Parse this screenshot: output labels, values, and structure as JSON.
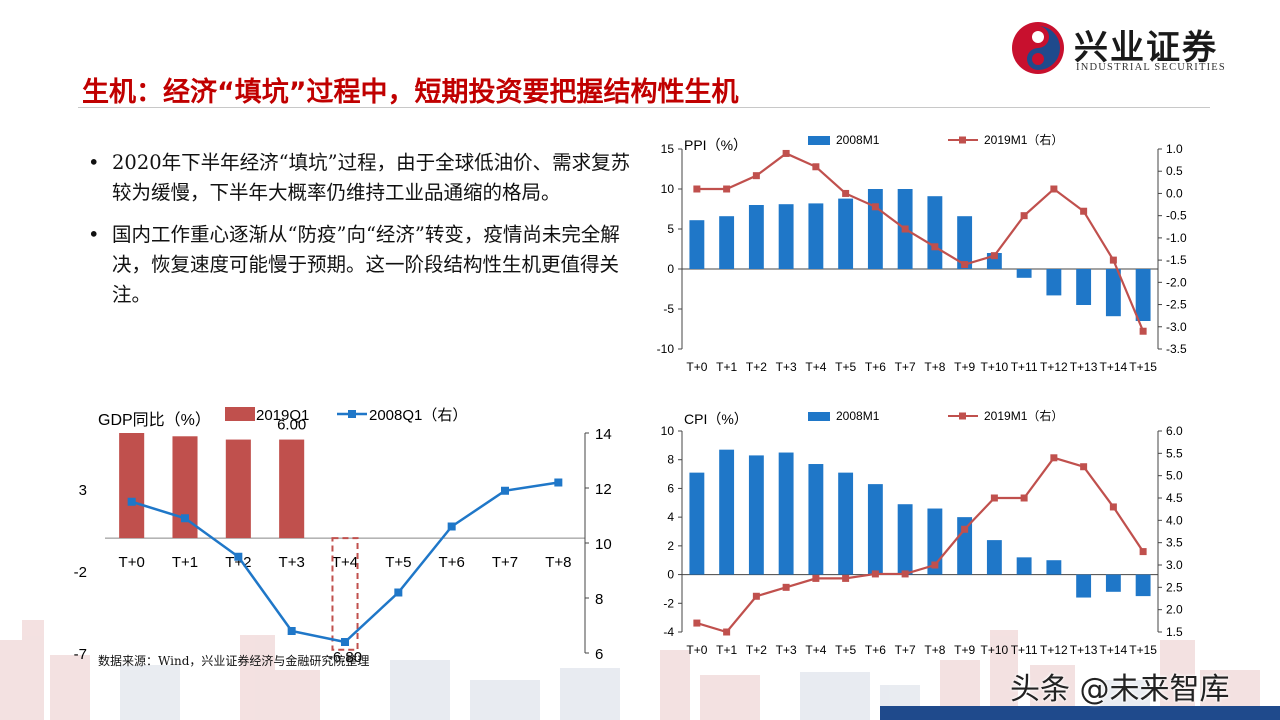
{
  "header": {
    "logo_cn": "兴业证券",
    "logo_en": "INDUSTRIAL SECURITIES",
    "title": "生机：经济“填坑”过程中，短期投资要把握结构性生机"
  },
  "bullets": [
    "2020年下半年经济“填坑”过程，由于全球低油价、需求复苏较为缓慢，下半年大概率仍维持工业品通缩的格局。",
    "国内工作重心逐渐从“防疫”向“经济”转变，疫情尚未完全解决，恢复速度可能慢于预期。这一阶段结构性生机更值得关注。"
  ],
  "source": "数据来源：Wind，兴业证券经济与金融研究院整理",
  "watermark": "头条 @未来智库",
  "colors": {
    "blue_bar": "#1f77c8",
    "red_line": "#c0504d",
    "red_bar": "#c0504d",
    "blue_line": "#1f77c8",
    "title_red": "#c00000"
  },
  "chart_data": [
    {
      "type": "bar",
      "id": "ppi",
      "title": "PPI（%）",
      "categories": [
        "T+0",
        "T+1",
        "T+2",
        "T+3",
        "T+4",
        "T+5",
        "T+6",
        "T+7",
        "T+8",
        "T+9",
        "T+10",
        "T+11",
        "T+12",
        "T+13",
        "T+14",
        "T+15"
      ],
      "series": [
        {
          "name": "2008M1",
          "kind": "bar",
          "axis": "left",
          "values": [
            6.1,
            6.6,
            8.0,
            8.1,
            8.2,
            8.8,
            10.0,
            10.0,
            9.1,
            6.6,
            2.0,
            -1.1,
            -3.3,
            -4.5,
            -5.9,
            -6.5
          ]
        },
        {
          "name": "2019M1（右）",
          "kind": "line",
          "axis": "right",
          "values": [
            0.1,
            0.1,
            0.4,
            0.9,
            0.6,
            0.0,
            -0.3,
            -0.8,
            -1.2,
            -1.6,
            -1.4,
            -0.5,
            0.1,
            -0.4,
            -1.5,
            -3.1
          ]
        }
      ],
      "ylim_left": [
        -10,
        15
      ],
      "yticks_left": [
        -10,
        -5,
        0,
        5,
        10,
        15
      ],
      "ylim_right": [
        -3.5,
        1.0
      ],
      "yticks_right": [
        "1.0",
        "0.5",
        "0.0",
        "-0.5",
        "-1.0",
        "-1.5",
        "-2.0",
        "-2.5",
        "-3.0",
        "-3.5"
      ],
      "legend": "top"
    },
    {
      "type": "bar",
      "id": "cpi",
      "title": "CPI（%）",
      "categories": [
        "T+0",
        "T+1",
        "T+2",
        "T+3",
        "T+4",
        "T+5",
        "T+6",
        "T+7",
        "T+8",
        "T+9",
        "T+10",
        "T+11",
        "T+12",
        "T+13",
        "T+14",
        "T+15"
      ],
      "series": [
        {
          "name": "2008M1",
          "kind": "bar",
          "axis": "left",
          "values": [
            7.1,
            8.7,
            8.3,
            8.5,
            7.7,
            7.1,
            6.3,
            4.9,
            4.6,
            4.0,
            2.4,
            1.2,
            1.0,
            -1.6,
            -1.2,
            -1.5
          ]
        },
        {
          "name": "2019M1（右）",
          "kind": "line",
          "axis": "right",
          "values": [
            1.7,
            1.5,
            2.3,
            2.5,
            2.7,
            2.7,
            2.8,
            2.8,
            3.0,
            3.8,
            4.5,
            4.5,
            5.4,
            5.2,
            4.3,
            3.3
          ]
        }
      ],
      "ylim_left": [
        -4,
        10
      ],
      "yticks_left": [
        -4,
        -2,
        0,
        2,
        4,
        6,
        8,
        10
      ],
      "ylim_right": [
        1.5,
        6.0
      ],
      "yticks_right": [
        "6.0",
        "5.5",
        "5.0",
        "4.5",
        "4.0",
        "3.5",
        "3.0",
        "2.5",
        "2.0",
        "1.5"
      ],
      "legend": "top"
    },
    {
      "type": "bar",
      "id": "gdp",
      "title": "GDP同比（%）",
      "categories": [
        "T+0",
        "T+1",
        "T+2",
        "T+3",
        "T+4",
        "T+5",
        "T+6",
        "T+7",
        "T+8"
      ],
      "series": [
        {
          "name": "2019Q1",
          "kind": "bar",
          "axis": "left",
          "values": [
            6.4,
            6.2,
            6.0,
            6.0,
            -6.8,
            null,
            null,
            null,
            null
          ]
        },
        {
          "name": "2008Q1（右）",
          "kind": "line",
          "axis": "right",
          "values": [
            11.5,
            10.9,
            9.5,
            6.8,
            6.4,
            8.2,
            10.6,
            11.9,
            12.2
          ]
        }
      ],
      "ylim_left": [
        -7,
        6.4
      ],
      "yticks_left": [
        -7,
        -2,
        3
      ],
      "ylim_right": [
        6,
        14
      ],
      "yticks_right": [
        6,
        8,
        10,
        12,
        14
      ],
      "data_labels": [
        "6.00",
        "-6.80"
      ],
      "legend": "top"
    }
  ]
}
